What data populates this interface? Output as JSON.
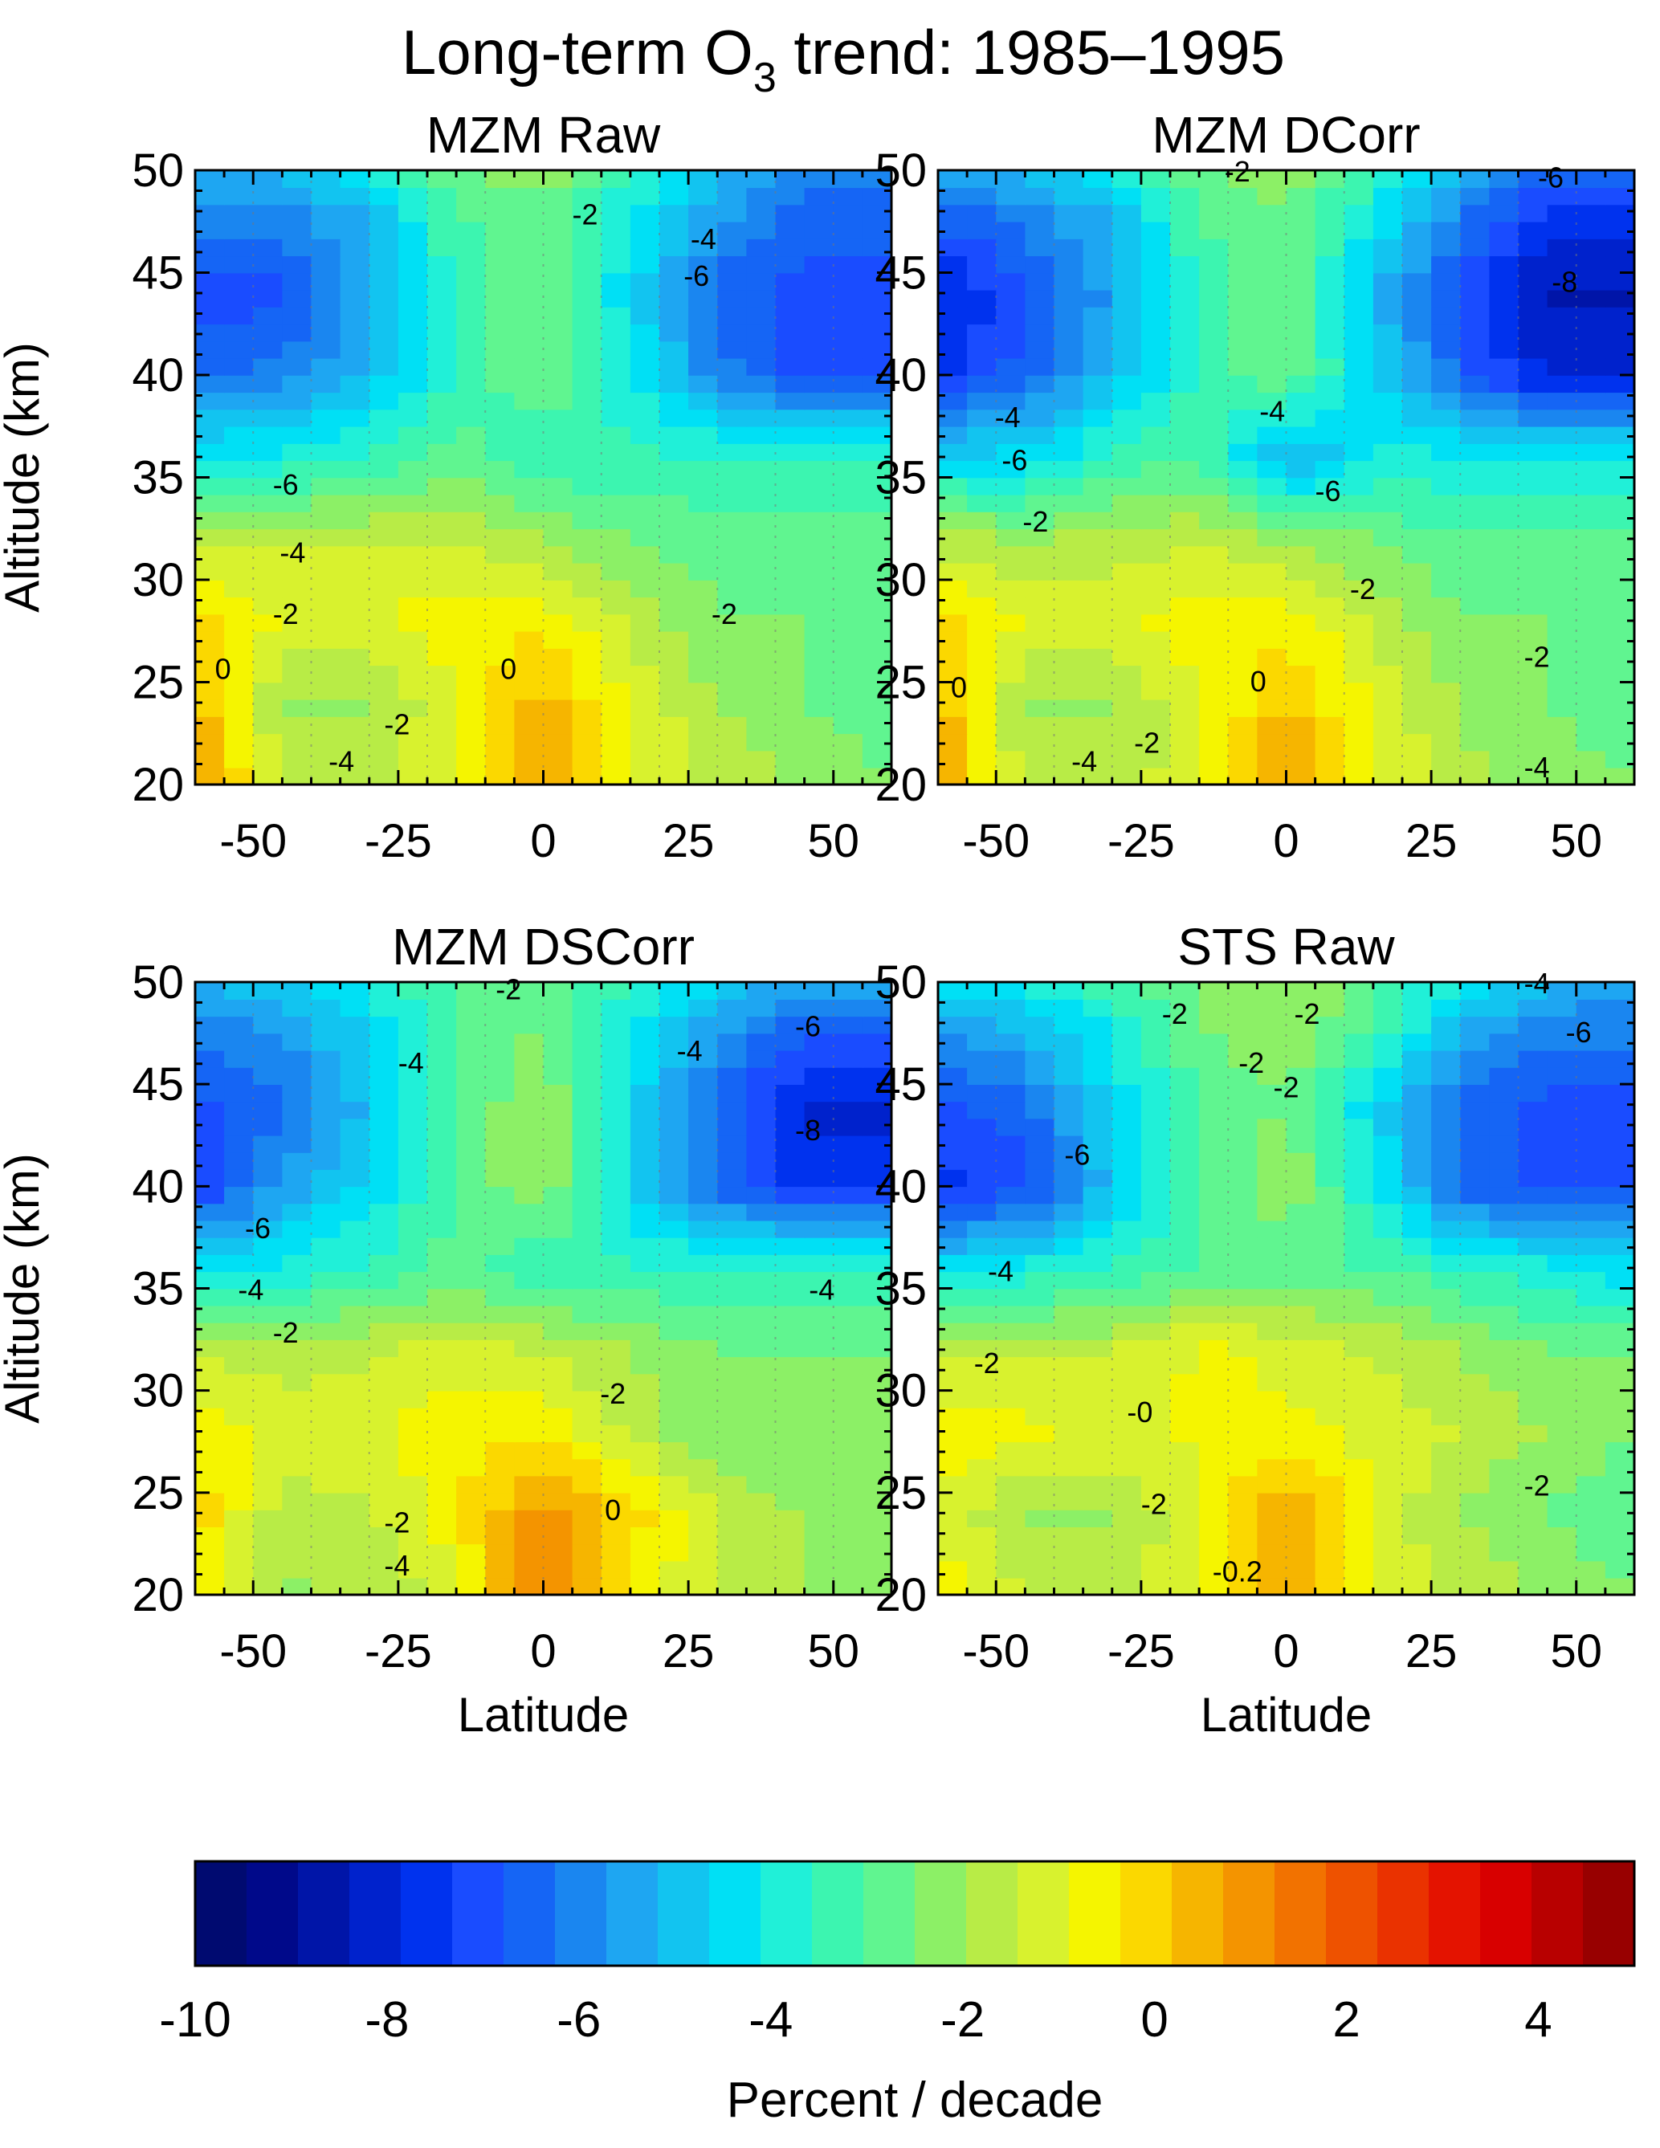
{
  "figure": {
    "title_main": "Long-term O",
    "title_sub": "3",
    "title_rest": " trend: 1985–1995"
  },
  "chart_data": [
    {
      "type": "heatmap",
      "title": "MZM Raw",
      "xlabel": "",
      "ylabel": "Altitude (km)",
      "xlim": [
        -60,
        60
      ],
      "ylim": [
        20,
        50
      ],
      "x_ticks": [
        -50,
        -25,
        0,
        25,
        50
      ],
      "y_ticks": [
        20,
        25,
        30,
        35,
        40,
        45,
        50
      ],
      "contour_labels": [
        "-2",
        "-4",
        "-6",
        "-6",
        "-4",
        "-2",
        "0",
        "0",
        "-2",
        "-4",
        "-2"
      ],
      "lat_nodes": [
        -60,
        -45,
        -30,
        -15,
        0,
        15,
        30,
        45,
        60
      ],
      "alt_nodes": [
        20,
        24,
        28,
        32,
        36,
        40,
        44,
        48,
        50
      ],
      "values": [
        [
          1.0,
          -1.5,
          -1.5,
          -0.8,
          0.5,
          -0.8,
          -1.5,
          -2.0,
          -2.5
        ],
        [
          0.5,
          -2.0,
          -2.0,
          -1.0,
          0.5,
          -1.0,
          -2.0,
          -2.5,
          -2.8
        ],
        [
          0.0,
          -1.0,
          -1.0,
          -0.5,
          -0.5,
          -1.5,
          -2.5,
          -2.5,
          -2.5
        ],
        [
          -1.5,
          -1.5,
          -1.5,
          -1.5,
          -2.0,
          -2.5,
          -2.8,
          -2.8,
          -2.8
        ],
        [
          -4.0,
          -4.0,
          -3.5,
          -2.8,
          -3.5,
          -3.5,
          -3.5,
          -3.5,
          -3.5
        ],
        [
          -6.5,
          -6.0,
          -5.0,
          -3.5,
          -2.5,
          -4.0,
          -6.0,
          -7.0,
          -7.0
        ],
        [
          -7.0,
          -7.0,
          -5.5,
          -3.5,
          -2.5,
          -4.5,
          -6.5,
          -7.0,
          -7.0
        ],
        [
          -6.0,
          -6.0,
          -5.0,
          -3.0,
          -2.8,
          -4.0,
          -5.5,
          -6.5,
          -6.5
        ],
        [
          -5.0,
          -5.0,
          -4.0,
          -2.5,
          -2.0,
          -3.5,
          -5.0,
          -6.0,
          -6.0
        ]
      ]
    },
    {
      "type": "heatmap",
      "title": "MZM DCorr",
      "xlabel": "",
      "ylabel": "",
      "xlim": [
        -60,
        60
      ],
      "ylim": [
        20,
        50
      ],
      "x_ticks": [
        -50,
        -25,
        0,
        25,
        50
      ],
      "y_ticks": [
        20,
        25,
        30,
        35,
        40,
        45,
        50
      ],
      "contour_labels": [
        "-2",
        "-6",
        "-8",
        "-4",
        "-6",
        "-4",
        "-6",
        "-2",
        "-2",
        "0",
        "0",
        "-2",
        "-4",
        "-2",
        "-4"
      ],
      "lat_nodes": [
        -60,
        -45,
        -30,
        -15,
        0,
        15,
        30,
        45,
        60
      ],
      "alt_nodes": [
        20,
        24,
        28,
        32,
        36,
        40,
        44,
        48,
        50
      ],
      "values": [
        [
          1.0,
          -1.8,
          -1.8,
          -1.0,
          1.0,
          -0.8,
          -1.8,
          -2.2,
          -2.5
        ],
        [
          0.5,
          -2.0,
          -2.0,
          -1.0,
          0.2,
          -1.0,
          -2.0,
          -2.5,
          -2.8
        ],
        [
          0.0,
          -1.0,
          -1.0,
          -0.5,
          -0.5,
          -1.5,
          -2.5,
          -2.5,
          -2.5
        ],
        [
          -1.8,
          -2.0,
          -1.8,
          -1.5,
          -2.0,
          -2.5,
          -3.0,
          -3.0,
          -3.0
        ],
        [
          -4.5,
          -4.5,
          -3.5,
          -3.0,
          -5.5,
          -4.0,
          -4.0,
          -4.0,
          -4.0
        ],
        [
          -7.5,
          -6.5,
          -5.0,
          -3.5,
          -2.5,
          -4.5,
          -6.5,
          -8.0,
          -8.0
        ],
        [
          -8.0,
          -7.0,
          -5.5,
          -3.5,
          -2.5,
          -5.0,
          -7.0,
          -8.5,
          -8.5
        ],
        [
          -6.5,
          -6.0,
          -5.0,
          -3.0,
          -2.5,
          -4.0,
          -6.0,
          -7.5,
          -7.5
        ],
        [
          -5.5,
          -5.0,
          -4.0,
          -2.5,
          -2.0,
          -3.5,
          -5.0,
          -6.5,
          -6.5
        ]
      ]
    },
    {
      "type": "heatmap",
      "title": "MZM DSCorr",
      "xlabel": "Latitude",
      "ylabel": "Altitude (km)",
      "xlim": [
        -60,
        60
      ],
      "ylim": [
        20,
        50
      ],
      "x_ticks": [
        -50,
        -25,
        0,
        25,
        50
      ],
      "y_ticks": [
        20,
        25,
        30,
        35,
        40,
        45,
        50
      ],
      "contour_labels": [
        "-2",
        "-6",
        "-4",
        "-4",
        "-8",
        "-6",
        "-4",
        "-4",
        "-2",
        "-2",
        "0",
        "-2",
        "-4"
      ],
      "lat_nodes": [
        -60,
        -45,
        -30,
        -15,
        0,
        15,
        30,
        45,
        60
      ],
      "alt_nodes": [
        20,
        24,
        28,
        32,
        36,
        40,
        44,
        48,
        50
      ],
      "values": [
        [
          -0.5,
          -2.0,
          -2.0,
          -1.0,
          1.5,
          -0.5,
          -1.5,
          -2.0,
          -2.5
        ],
        [
          0.0,
          -1.8,
          -1.5,
          -0.5,
          1.0,
          0.0,
          -1.5,
          -2.0,
          -2.5
        ],
        [
          -0.5,
          -1.0,
          -1.0,
          -0.5,
          -0.5,
          -1.5,
          -2.5,
          -2.5,
          -2.5
        ],
        [
          -1.5,
          -1.8,
          -1.5,
          -1.2,
          -1.5,
          -2.0,
          -2.5,
          -2.5,
          -2.5
        ],
        [
          -4.0,
          -4.0,
          -3.5,
          -2.8,
          -3.5,
          -3.5,
          -3.5,
          -3.5,
          -3.5
        ],
        [
          -7.5,
          -5.5,
          -4.5,
          -3.0,
          -2.0,
          -4.5,
          -6.5,
          -7.5,
          -7.5
        ],
        [
          -7.0,
          -6.5,
          -5.0,
          -3.0,
          -2.0,
          -4.5,
          -6.5,
          -8.0,
          -8.0
        ],
        [
          -6.0,
          -5.5,
          -4.5,
          -3.0,
          -2.5,
          -4.0,
          -5.5,
          -6.5,
          -6.5
        ],
        [
          -5.0,
          -5.0,
          -4.0,
          -3.0,
          -2.5,
          -3.5,
          -4.5,
          -5.5,
          -5.5
        ]
      ]
    },
    {
      "type": "heatmap",
      "title": "STS Raw",
      "xlabel": "Latitude",
      "ylabel": "",
      "xlim": [
        -60,
        60
      ],
      "ylim": [
        20,
        50
      ],
      "x_ticks": [
        -50,
        -25,
        0,
        25,
        50
      ],
      "y_ticks": [
        20,
        25,
        30,
        35,
        40,
        45,
        50
      ],
      "contour_labels": [
        "-4",
        "-2",
        "-2",
        "-2",
        "-2",
        "-6",
        "-6",
        "-4",
        "-2",
        "-0",
        "-2",
        "-2",
        "-0.2"
      ],
      "lat_nodes": [
        -60,
        -45,
        -30,
        -15,
        0,
        15,
        30,
        45,
        60
      ],
      "alt_nodes": [
        20,
        24,
        28,
        32,
        36,
        40,
        44,
        48,
        50
      ],
      "values": [
        [
          -0.5,
          -1.5,
          -1.5,
          -1.0,
          0.5,
          -1.0,
          -1.5,
          -2.0,
          -2.5
        ],
        [
          -1.0,
          -2.0,
          -2.0,
          -1.0,
          1.0,
          -1.0,
          -2.0,
          -2.5,
          -3.0
        ],
        [
          -0.5,
          -0.8,
          -1.0,
          -0.8,
          -0.8,
          -1.0,
          -1.5,
          -2.0,
          -2.5
        ],
        [
          -1.5,
          -1.5,
          -1.5,
          -0.8,
          -1.0,
          -1.5,
          -2.0,
          -2.5,
          -2.5
        ],
        [
          -4.5,
          -4.0,
          -3.5,
          -3.0,
          -3.0,
          -3.0,
          -3.5,
          -4.0,
          -4.5
        ],
        [
          -7.5,
          -7.0,
          -5.0,
          -3.0,
          -2.0,
          -4.0,
          -6.5,
          -7.0,
          -7.0
        ],
        [
          -7.0,
          -6.5,
          -4.5,
          -3.0,
          -2.5,
          -4.5,
          -6.5,
          -7.0,
          -7.0
        ],
        [
          -5.5,
          -5.0,
          -4.0,
          -2.5,
          -2.0,
          -3.0,
          -5.0,
          -6.0,
          -6.0
        ],
        [
          -4.5,
          -4.0,
          -3.0,
          -2.5,
          -2.0,
          -3.0,
          -4.0,
          -5.0,
          -5.5
        ]
      ]
    }
  ],
  "colorbar": {
    "label": "Percent / decade",
    "min": -10,
    "max": 5,
    "ticks": [
      "-10",
      "-8",
      "-6",
      "-4",
      "-2",
      "0",
      "2",
      "4"
    ],
    "tick_values": [
      -10,
      -8,
      -6,
      -4,
      -2,
      0,
      2,
      4
    ],
    "colors": [
      "#000a70",
      "#00098a",
      "#0015a8",
      "#0022cc",
      "#0032ee",
      "#1a4cff",
      "#1565f5",
      "#1a86f0",
      "#1ea6f2",
      "#12c4f0",
      "#00e0f5",
      "#20f0d8",
      "#3cf5b0",
      "#60f590",
      "#8cf066",
      "#b8ec46",
      "#d8f22e",
      "#f5f500",
      "#fbd800",
      "#f6b500",
      "#f49400",
      "#f27200",
      "#ee5200",
      "#ea3200",
      "#e41300",
      "#d80000",
      "#b80000",
      "#980000"
    ]
  }
}
